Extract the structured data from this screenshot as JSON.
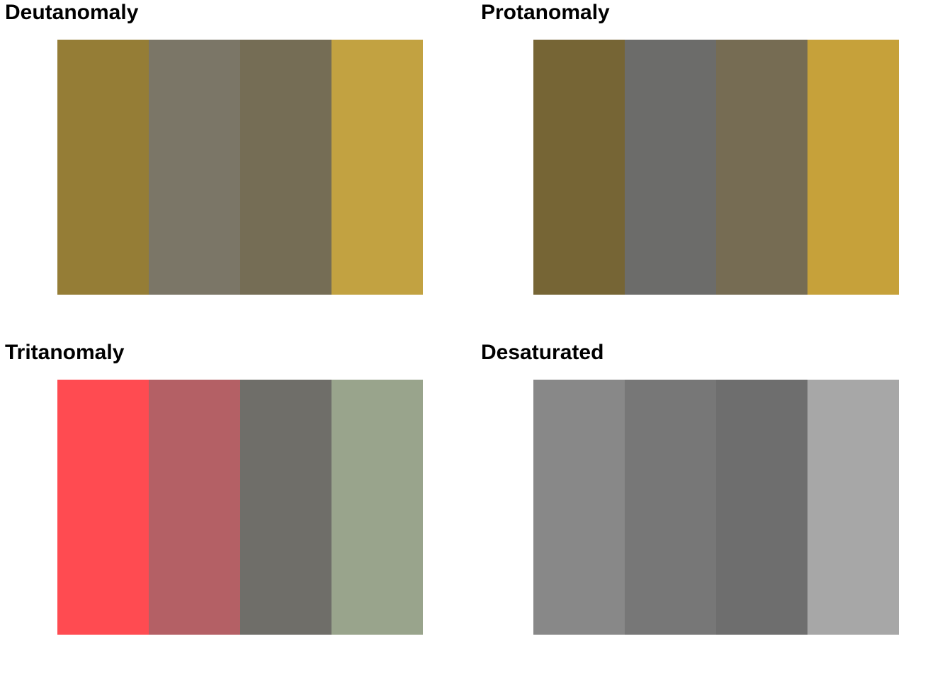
{
  "panels": [
    {
      "title": "Deutanomaly",
      "swatches": [
        "#957D36",
        "#7B7667",
        "#756D55",
        "#C2A241"
      ]
    },
    {
      "title": "Protanomaly",
      "swatches": [
        "#766535",
        "#6C6C6A",
        "#766C53",
        "#C6A13A"
      ]
    },
    {
      "title": "Tritanomaly",
      "swatches": [
        "#FF4B51",
        "#B46065",
        "#6F6E69",
        "#99A48C"
      ]
    },
    {
      "title": "Desaturated",
      "swatches": [
        "#888888",
        "#777777",
        "#6E6E6E",
        "#A7A7A7"
      ]
    }
  ]
}
